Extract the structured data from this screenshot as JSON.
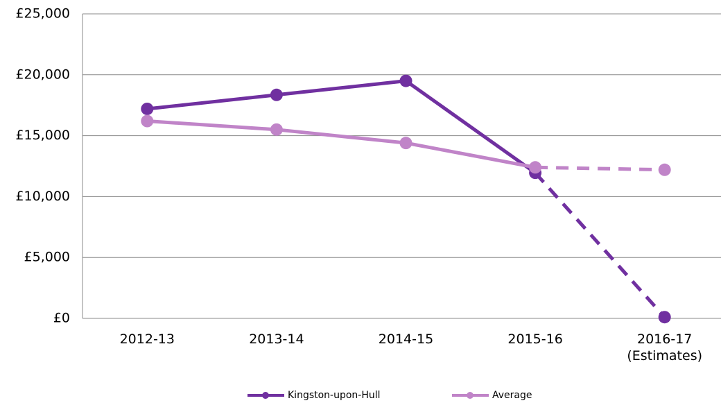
{
  "chart_data": {
    "type": "line",
    "categories": [
      "2012-13",
      "2013-14",
      "2014-15",
      "2015-16",
      "2016-17 (Estimates)"
    ],
    "series": [
      {
        "name": "Kingston-upon-Hull",
        "color": "#7030a0",
        "values": [
          17200,
          18350,
          19500,
          11950,
          100
        ]
      },
      {
        "name": "Average",
        "color": "#c084c8",
        "values": [
          16200,
          15500,
          14400,
          12400,
          12200
        ]
      }
    ],
    "dashed_from": 3,
    "ylim": [
      0,
      25000
    ],
    "yticks": [
      {
        "value": 0,
        "label": "£0"
      },
      {
        "value": 5000,
        "label": "£5,000"
      },
      {
        "value": 10000,
        "label": "£10,000"
      },
      {
        "value": 15000,
        "label": "£15,000"
      },
      {
        "value": 20000,
        "label": "£20,000"
      },
      {
        "value": 25000,
        "label": "£25,000"
      }
    ],
    "grid": true,
    "legend": "bottom"
  }
}
